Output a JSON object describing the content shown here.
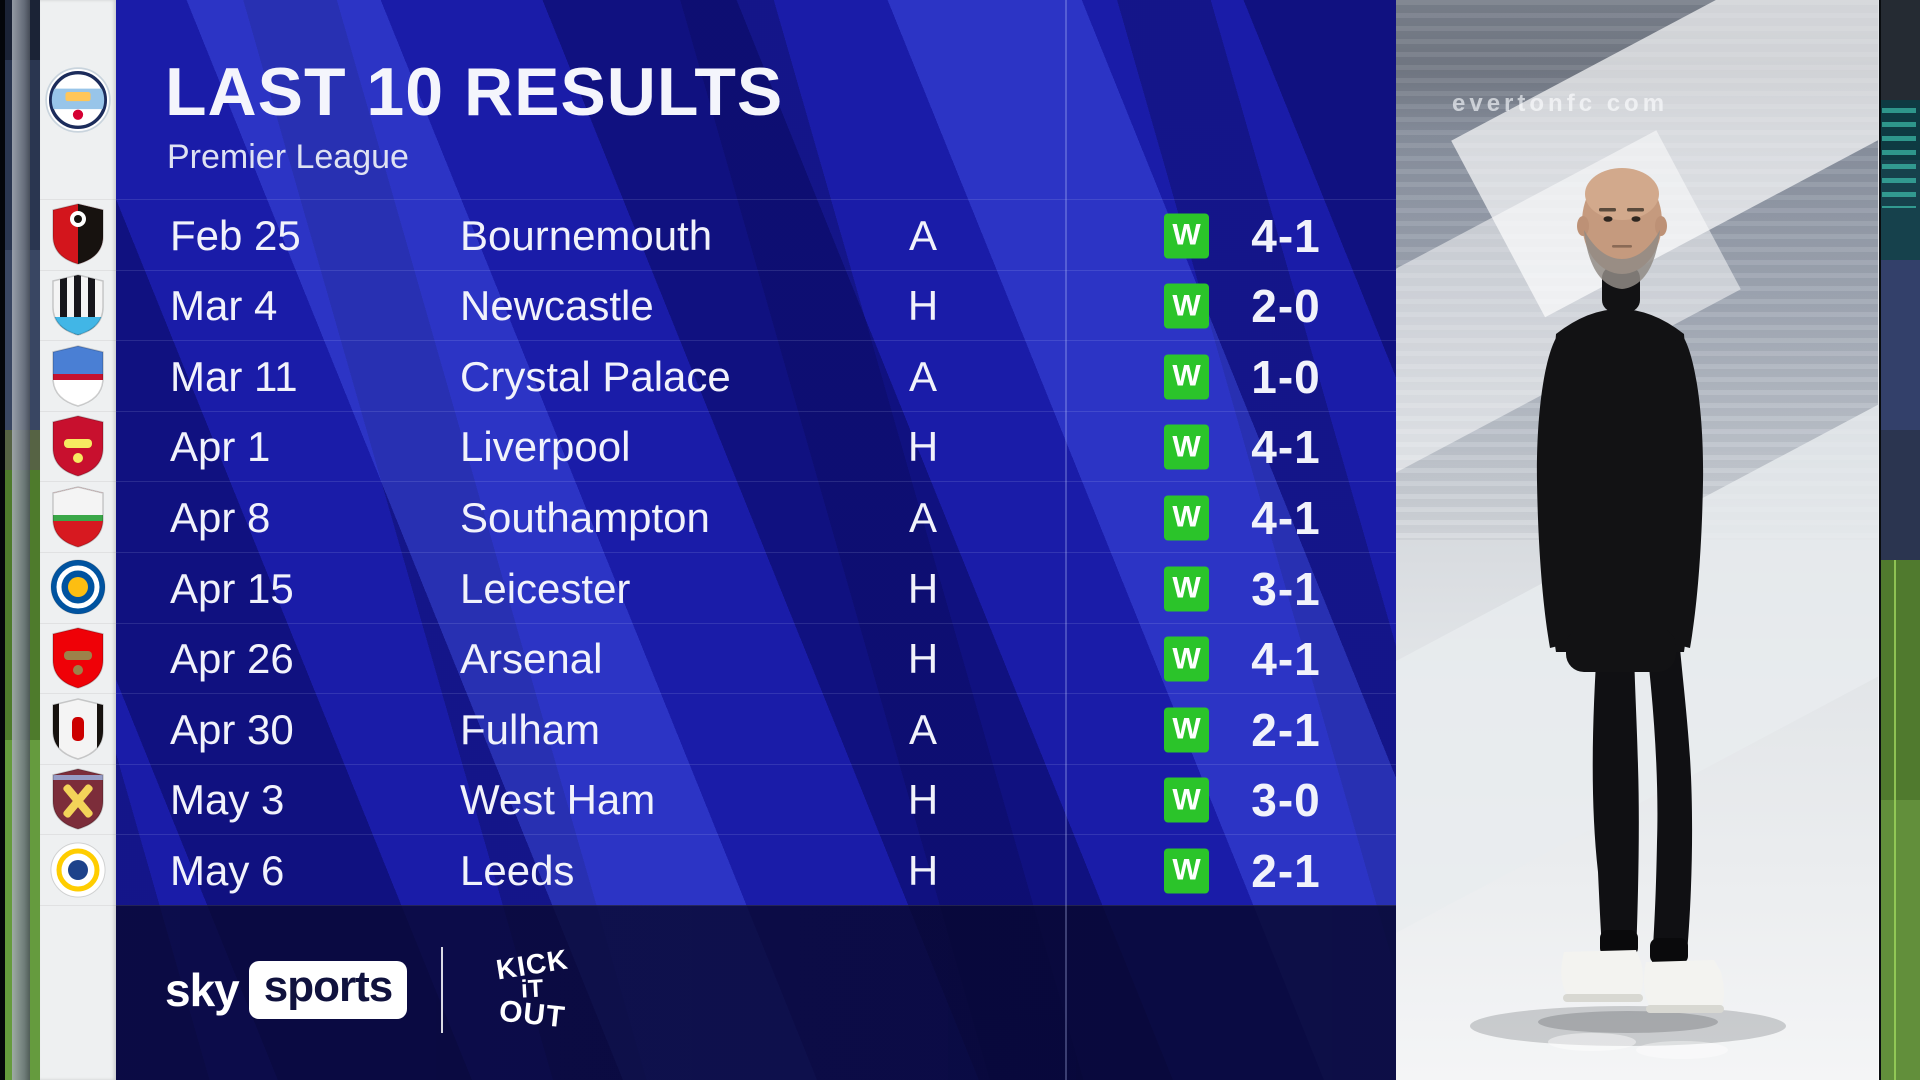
{
  "header": {
    "title": "LAST 10 RESULTS",
    "subtitle": "Premier League"
  },
  "club": {
    "name": "Manchester City"
  },
  "results": [
    {
      "date": "Feb 25",
      "opponent": "Bournemouth",
      "venue": "A",
      "result": "W",
      "score": "4-1",
      "badge": "bournemouth"
    },
    {
      "date": "Mar 4",
      "opponent": "Newcastle",
      "venue": "H",
      "result": "W",
      "score": "2-0",
      "badge": "newcastle"
    },
    {
      "date": "Mar 11",
      "opponent": "Crystal Palace",
      "venue": "A",
      "result": "W",
      "score": "1-0",
      "badge": "crystal-palace"
    },
    {
      "date": "Apr 1",
      "opponent": "Liverpool",
      "venue": "H",
      "result": "W",
      "score": "4-1",
      "badge": "liverpool"
    },
    {
      "date": "Apr 8",
      "opponent": "Southampton",
      "venue": "A",
      "result": "W",
      "score": "4-1",
      "badge": "southampton"
    },
    {
      "date": "Apr 15",
      "opponent": "Leicester",
      "venue": "H",
      "result": "W",
      "score": "3-1",
      "badge": "leicester"
    },
    {
      "date": "Apr 26",
      "opponent": "Arsenal",
      "venue": "H",
      "result": "W",
      "score": "4-1",
      "badge": "arsenal"
    },
    {
      "date": "Apr 30",
      "opponent": "Fulham",
      "venue": "A",
      "result": "W",
      "score": "2-1",
      "badge": "fulham"
    },
    {
      "date": "May 3",
      "opponent": "West Ham",
      "venue": "H",
      "result": "W",
      "score": "3-0",
      "badge": "west-ham"
    },
    {
      "date": "May 6",
      "opponent": "Leeds",
      "venue": "H",
      "result": "W",
      "score": "2-1",
      "badge": "leeds"
    }
  ],
  "footer": {
    "sky": "sky",
    "sports": "sports",
    "partner_lines": [
      "KICK",
      "iT",
      "OUT"
    ]
  },
  "background": {
    "stadium_watermark": "evertonfc com"
  },
  "colors": {
    "win_badge": "#2bc42a",
    "panel_blue": "#1a1ca8",
    "band_navy": "#0a0a38",
    "text": "#f1f2fb",
    "badges": {
      "manchester-city": {
        "type": "mc",
        "colors": [
          "#ffffff",
          "#1c2c5b",
          "#98c5e9",
          "#ffc659",
          "#d50032"
        ]
      },
      "bournemouth": {
        "type": "shield2",
        "colors": [
          "#d3151c",
          "#17120f",
          "#ffffff"
        ]
      },
      "newcastle": {
        "type": "stripes",
        "colors": [
          "#17161b",
          "#41b6e6"
        ]
      },
      "crystal-palace": {
        "type": "half",
        "colors": [
          "#4a7fd4",
          "#ffffff",
          "#c4122e"
        ]
      },
      "liverpool": {
        "type": "emblem",
        "colors": [
          "#c8102e",
          "#f6eb61"
        ]
      },
      "southampton": {
        "type": "half",
        "colors": [
          "#f4f4f4",
          "#d71920",
          "#3aa748"
        ]
      },
      "leicester": {
        "type": "ring",
        "colors": [
          "#0053a0",
          "#ffffff",
          "#fdbe11"
        ]
      },
      "arsenal": {
        "type": "emblem",
        "colors": [
          "#ef0107",
          "#9c824a"
        ]
      },
      "fulham": {
        "type": "sides",
        "colors": [
          "#f4f4f4",
          "#17120f",
          "#cc0000"
        ]
      },
      "west-ham": {
        "type": "hammers",
        "colors": [
          "#7c2d3a",
          "#f3d459",
          "#9db8e8"
        ]
      },
      "leeds": {
        "type": "ring",
        "colors": [
          "#ffffff",
          "#ffcd00",
          "#1d428a"
        ]
      }
    }
  }
}
